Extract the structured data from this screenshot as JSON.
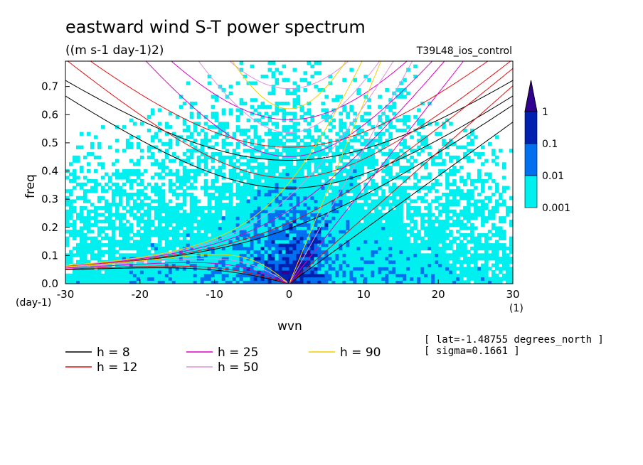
{
  "chart_data": {
    "type": "heatmap",
    "title": "eastward wind S-T power spectrum",
    "units": "((m s-1 day-1)2)",
    "experiment": "T39L48_ios_control",
    "xlabel": "wvn",
    "ylabel": "freq",
    "x_unit_label": "(1)",
    "y_unit_label": "(day-1)",
    "xlim": [
      -30,
      30
    ],
    "ylim": [
      0,
      0.79
    ],
    "x_ticks": [
      -30,
      -20,
      -10,
      0,
      10,
      20,
      30
    ],
    "x_tick_labels": [
      "-30",
      "-20",
      "-10",
      "0",
      "10",
      "20",
      "30"
    ],
    "y_ticks": [
      0,
      0.1,
      0.2,
      0.3,
      0.4,
      0.5,
      0.6,
      0.7
    ],
    "y_tick_labels": [
      "0.0",
      "0.1",
      "0.2",
      "0.3",
      "0.4",
      "0.5",
      "0.6",
      "0.7"
    ],
    "colorbar": {
      "levels": [
        "0.001",
        "0.01",
        "0.1",
        "1"
      ],
      "colors": [
        "#00f0f0",
        "#0070f0",
        "#0020b0",
        "#300090"
      ],
      "extend": "max"
    },
    "dispersion_curves": [
      {
        "label": "h =  8",
        "h": 8,
        "color": "#000000"
      },
      {
        "label": "h = 12",
        "h": 12,
        "color": "#e01010"
      },
      {
        "label": "h = 25",
        "h": 25,
        "color": "#e000c0"
      },
      {
        "label": "h = 50",
        "h": 50,
        "color": "#e090e0"
      },
      {
        "label": "h = 90",
        "h": 90,
        "color": "#f0d000"
      }
    ],
    "info_lines": [
      "[ lat=-1.48755 degrees_north ]",
      "[ sigma=0.1661 ]"
    ]
  }
}
